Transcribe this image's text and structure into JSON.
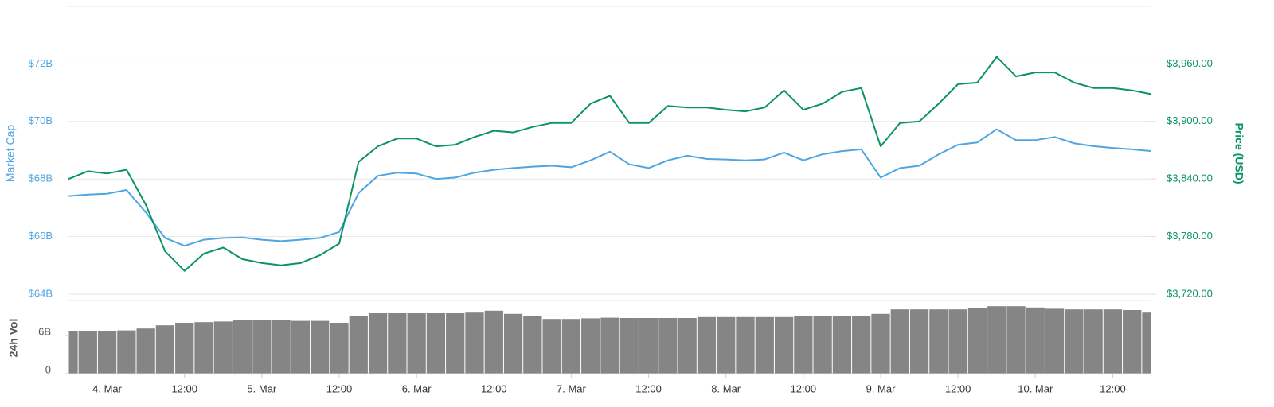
{
  "chart_data": [
    {
      "type": "line",
      "series": [
        {
          "name": "Market Cap",
          "color": "#4da6e2",
          "axis": "y",
          "values": [
            67.41,
            67.46,
            67.49,
            67.62,
            66.84,
            65.95,
            65.68,
            65.89,
            65.95,
            65.97,
            65.89,
            65.84,
            65.89,
            65.95,
            66.16,
            67.51,
            68.11,
            68.22,
            68.19,
            68.0,
            68.05,
            68.22,
            68.32,
            68.38,
            68.43,
            68.46,
            68.41,
            68.65,
            68.95,
            68.51,
            68.38,
            68.65,
            68.81,
            68.7,
            68.68,
            68.65,
            68.68,
            68.92,
            68.65,
            68.86,
            68.97,
            69.03,
            68.05,
            68.38,
            68.46,
            68.86,
            69.19,
            69.27,
            69.73,
            69.35,
            69.35,
            69.46,
            69.24,
            69.14,
            69.08,
            69.03,
            68.97
          ]
        },
        {
          "name": "Price (USD)",
          "color": "#0a9460",
          "axis": "y2",
          "values": [
            3840.0,
            3848.1,
            3845.7,
            3849.7,
            3813.2,
            3764.6,
            3744.3,
            3762.2,
            3768.6,
            3756.5,
            3752.4,
            3750.0,
            3752.4,
            3760.5,
            3772.7,
            3857.8,
            3874.1,
            3882.2,
            3882.2,
            3874.1,
            3875.7,
            3883.8,
            3890.3,
            3888.6,
            3894.3,
            3898.4,
            3898.4,
            3918.6,
            3926.8,
            3898.4,
            3898.4,
            3916.2,
            3914.6,
            3914.6,
            3912.2,
            3910.5,
            3914.6,
            3932.4,
            3912.2,
            3918.6,
            3930.8,
            3934.9,
            3874.1,
            3898.4,
            3900.0,
            3918.6,
            3938.9,
            3940.5,
            3967.3,
            3947.0,
            3951.1,
            3951.1,
            3940.5,
            3934.9,
            3934.9,
            3932.4,
            3928.4
          ]
        }
      ],
      "ylim": [
        64,
        74
      ],
      "yticks": [
        {
          "value": 64,
          "label": "$64B"
        },
        {
          "value": 66,
          "label": "$66B"
        },
        {
          "value": 68,
          "label": "$68B"
        },
        {
          "value": 70,
          "label": "$70B"
        },
        {
          "value": 72,
          "label": "$72B"
        }
      ],
      "y2lim": [
        3720,
        4020
      ],
      "y2ticks": [
        {
          "value": 3720,
          "label": "$3,720.00"
        },
        {
          "value": 3780,
          "label": "$3,780.00"
        },
        {
          "value": 3840,
          "label": "$3,840.00"
        },
        {
          "value": 3900,
          "label": "$3,900.00"
        },
        {
          "value": 3960,
          "label": "$3,960.00"
        }
      ],
      "grid": true
    },
    {
      "type": "bar",
      "y_label": "24h Vol",
      "color": "#707070",
      "categories": [
        null,
        null,
        "4. Mar",
        null,
        null,
        null,
        "12:00",
        null,
        null,
        null,
        "5. Mar",
        null,
        null,
        null,
        "12:00",
        null,
        null,
        null,
        "6. Mar",
        null,
        null,
        null,
        "12:00",
        null,
        null,
        null,
        "7. Mar",
        null,
        null,
        null,
        "12:00",
        null,
        null,
        null,
        "8. Mar",
        null,
        null,
        null,
        "12:00",
        null,
        null,
        null,
        "9. Mar",
        null,
        null,
        null,
        "12:00",
        null,
        null,
        null,
        "10. Mar",
        null,
        null,
        null,
        "12:00",
        null,
        null
      ],
      "values": [
        6.75,
        6.75,
        6.75,
        6.8,
        7.1,
        7.6,
        8.0,
        8.1,
        8.2,
        8.4,
        8.4,
        8.4,
        8.3,
        8.3,
        8.0,
        9.0,
        9.5,
        9.5,
        9.5,
        9.5,
        9.5,
        9.6,
        9.9,
        9.4,
        9.0,
        8.6,
        8.6,
        8.7,
        8.8,
        8.75,
        8.75,
        8.75,
        8.75,
        8.9,
        8.9,
        8.9,
        8.9,
        8.9,
        9.0,
        9.0,
        9.1,
        9.1,
        9.4,
        10.1,
        10.1,
        10.1,
        10.1,
        10.3,
        10.6,
        10.6,
        10.4,
        10.2,
        10.1,
        10.1,
        10.1,
        10.0,
        9.6
      ],
      "ylim": [
        0,
        11.5
      ],
      "yticks": [
        0,
        {
          "value": 6,
          "label": "6B"
        }
      ]
    }
  ]
}
